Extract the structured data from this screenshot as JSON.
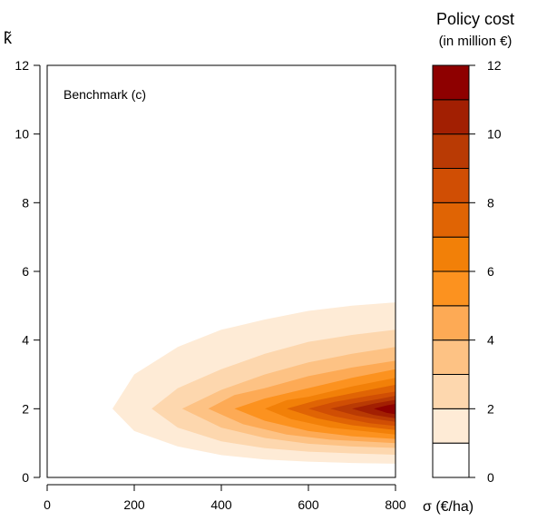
{
  "chart_data": {
    "type": "heatmap",
    "subtype": "filled-contour",
    "annotation": "Benchmark (c)",
    "xlabel": "σ (€/ha)",
    "ylabel": "k̃",
    "xlim": [
      0,
      800
    ],
    "ylim": [
      0,
      12
    ],
    "xticks": [
      "0",
      "200",
      "400",
      "600",
      "800"
    ],
    "yticks": [
      "0",
      "2",
      "4",
      "6",
      "8",
      "10",
      "12"
    ],
    "colorbar": {
      "title": "Policy cost",
      "subtitle": "(in million €)",
      "range": [
        0,
        12
      ],
      "ticks": [
        "0",
        "2",
        "4",
        "6",
        "8",
        "10",
        "12"
      ],
      "levels": [
        {
          "min": 0,
          "max": 1,
          "color": "#FFFFFF"
        },
        {
          "min": 1,
          "max": 2,
          "color": "#FEEBD6"
        },
        {
          "min": 2,
          "max": 3,
          "color": "#FDD7AE"
        },
        {
          "min": 3,
          "max": 4,
          "color": "#FDC284"
        },
        {
          "min": 4,
          "max": 5,
          "color": "#FDAA55"
        },
        {
          "min": 5,
          "max": 6,
          "color": "#FC921F"
        },
        {
          "min": 6,
          "max": 7,
          "color": "#F28008"
        },
        {
          "min": 7,
          "max": 8,
          "color": "#E06404"
        },
        {
          "min": 8,
          "max": 9,
          "color": "#D04E04"
        },
        {
          "min": 9,
          "max": 10,
          "color": "#B93A04"
        },
        {
          "min": 10,
          "max": 11,
          "color": "#A21F02"
        },
        {
          "min": 11,
          "max": 12,
          "color": "#8E0000"
        }
      ]
    },
    "contours": [
      {
        "level": 1,
        "points": [
          [
            150,
            2
          ],
          [
            200,
            1.35
          ],
          [
            300,
            0.9
          ],
          [
            400,
            0.65
          ],
          [
            500,
            0.52
          ],
          [
            600,
            0.46
          ],
          [
            700,
            0.42
          ],
          [
            800,
            0.4
          ],
          [
            800,
            5.1
          ],
          [
            700,
            5.0
          ],
          [
            600,
            4.85
          ],
          [
            500,
            4.6
          ],
          [
            400,
            4.3
          ],
          [
            300,
            3.8
          ],
          [
            200,
            3.0
          ]
        ]
      },
      {
        "level": 2,
        "points": [
          [
            240,
            2
          ],
          [
            300,
            1.45
          ],
          [
            400,
            1.05
          ],
          [
            500,
            0.85
          ],
          [
            600,
            0.75
          ],
          [
            700,
            0.7
          ],
          [
            800,
            0.66
          ],
          [
            800,
            4.3
          ],
          [
            700,
            4.15
          ],
          [
            600,
            3.95
          ],
          [
            500,
            3.6
          ],
          [
            400,
            3.15
          ],
          [
            300,
            2.6
          ]
        ]
      },
      {
        "level": 3,
        "points": [
          [
            310,
            2
          ],
          [
            400,
            1.45
          ],
          [
            500,
            1.15
          ],
          [
            600,
            0.98
          ],
          [
            700,
            0.9
          ],
          [
            800,
            0.86
          ],
          [
            800,
            3.8
          ],
          [
            700,
            3.6
          ],
          [
            600,
            3.35
          ],
          [
            500,
            3.0
          ],
          [
            400,
            2.55
          ]
        ]
      },
      {
        "level": 4,
        "points": [
          [
            370,
            2
          ],
          [
            450,
            1.55
          ],
          [
            550,
            1.25
          ],
          [
            650,
            1.1
          ],
          [
            800,
            1.0
          ],
          [
            800,
            3.4
          ],
          [
            700,
            3.2
          ],
          [
            600,
            2.95
          ],
          [
            500,
            2.6
          ],
          [
            430,
            2.4
          ]
        ]
      },
      {
        "level": 5,
        "points": [
          [
            430,
            2
          ],
          [
            500,
            1.65
          ],
          [
            600,
            1.35
          ],
          [
            700,
            1.2
          ],
          [
            800,
            1.12
          ],
          [
            800,
            3.15
          ],
          [
            700,
            2.9
          ],
          [
            600,
            2.6
          ],
          [
            500,
            2.3
          ]
        ]
      },
      {
        "level": 6,
        "points": [
          [
            500,
            2
          ],
          [
            560,
            1.7
          ],
          [
            650,
            1.45
          ],
          [
            800,
            1.25
          ],
          [
            800,
            2.9
          ],
          [
            700,
            2.65
          ],
          [
            600,
            2.35
          ],
          [
            550,
            2.25
          ]
        ]
      },
      {
        "level": 7,
        "points": [
          [
            550,
            2
          ],
          [
            620,
            1.72
          ],
          [
            700,
            1.52
          ],
          [
            800,
            1.38
          ],
          [
            800,
            2.7
          ],
          [
            700,
            2.45
          ],
          [
            620,
            2.25
          ]
        ]
      },
      {
        "level": 8,
        "points": [
          [
            600,
            2
          ],
          [
            660,
            1.78
          ],
          [
            740,
            1.58
          ],
          [
            800,
            1.5
          ],
          [
            800,
            2.5
          ],
          [
            740,
            2.38
          ],
          [
            660,
            2.2
          ]
        ]
      },
      {
        "level": 9,
        "points": [
          [
            650,
            2
          ],
          [
            710,
            1.8
          ],
          [
            770,
            1.67
          ],
          [
            800,
            1.62
          ],
          [
            800,
            2.38
          ],
          [
            760,
            2.28
          ],
          [
            700,
            2.15
          ]
        ]
      },
      {
        "level": 10,
        "points": [
          [
            700,
            2
          ],
          [
            750,
            1.82
          ],
          [
            800,
            1.72
          ],
          [
            800,
            2.26
          ],
          [
            750,
            2.15
          ]
        ]
      },
      {
        "level": 11,
        "points": [
          [
            750,
            2
          ],
          [
            780,
            1.88
          ],
          [
            800,
            1.84
          ],
          [
            800,
            2.14
          ],
          [
            780,
            2.1
          ]
        ]
      }
    ]
  }
}
